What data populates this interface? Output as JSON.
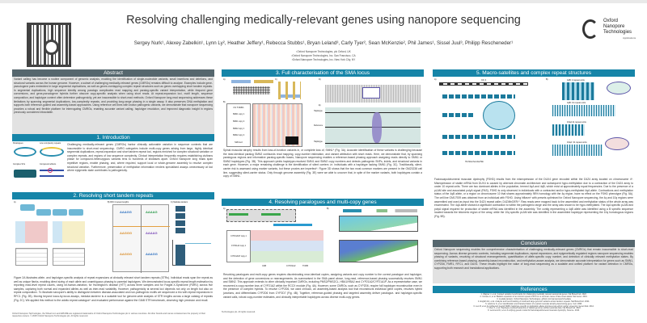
{
  "header": {
    "title": "Resolving challenging medically-relevant genes using nanopore sequencing",
    "authors": "Sergey Nurk¹, Alexey Zabelkin¹, Lynn Ly², Heather Jeffery¹, Rebecca Stubbs¹, Bryan Leland³, Carly Tyer², Sean McKenzie², Phil James¹, Sissel Juul³, Philipp Rescheneder¹",
    "affiliations": [
      "¹Oxford Nanopore Technologies, plc Oxford, UK",
      "²Oxford Nanopore Technologies, Inc. San Francisco, CA",
      "³Oxford Nanopore Technologies, Inc. New York City, NY"
    ],
    "logo_text": "Oxford Nanopore Technologies",
    "logo_sub": "Applications"
  },
  "abstract": {
    "heading": "Abstract",
    "text": "Variant calling has become a routine component of genomic analysis, enabling the identification of single-nucleotide variants, small insertions and deletions, and structural variants across the human genome. However, a subset of challenging medically-relevant genes (CMRGs) remains difficult to analyse. Examples include gene-pseudogene pairs embedded in large segmental duplications, as well as genes overlapping complex repeat structures such as genes overlapping short tandem repeats. In segmental duplications, high sequence identity among paralogs complicates read mapping and paralog-specific variant interpretation, while frequent gene conversions, and gene-pseudogene hybrids further obscure copy-specific analysis when using short reads. At repeat-expansion loci, motif length, sequence composition, and haplotype context often determine pathogenicity, yet are inaccessible to short-read methods. Oxford Nanopore long-read sequencing addresses these limitations by spanning segmental duplications, low-complexity repeats, and providing long-range phasing in a single assay. It also preserves DNA methylation and supports both reference-guided and assembly-based approaches. Using reference cell lines with known pathogenic variants, we demonstrate that nanopore sequencing provides a robust and flexible platform for interrogating CMRGs, enabling accurate variant calling, haplotype resolution, and improved diagnostic insight in regions previously considered intractable."
  },
  "intro": {
    "heading": "1. Introduction",
    "fig_labels": [
      "Paralogues",
      "Low complexity repeats",
      "Complex SVs",
      "Compound effects"
    ],
    "text": "Challenging medically-relevant genes (CMRGs) harbor clinically actionable variation in sequence contexts that are inaccessible to short-read sequencing¹. CMRG categories include multi-copy genes arising from large, highly identical segmental duplications, repeat-expansion and short tandem repeat loci, regions enriched for complex structural variation or complex repeats, and regions of low sequence complexity. Clinical interpretation frequently requires establishing cis/trans phase for compound-heterozygous variants tens to hundreds of kilobases apart. Oxford Nanopore long reads span repetitive regions, enable phasing, and, where required, support local or whole-genome assembly to resolve complex structural variation. Furthermore, preservation of methylation information renders specialised assays unnecessary at loci where epigenetic state contributes to pathogenicity."
  },
  "str": {
    "heading": "2. Resolving short tandem repeats",
    "panel_labels": [
      "A)",
      "B) RFC1 repeat lengths",
      "C) Medaka tandem"
    ],
    "motifs": [
      "AAAGG",
      "AAAAG",
      "AAGGG",
      "AAAAG",
      "AAGGG",
      "AAAGG"
    ],
    "text": "Figure 2A illustrates allele- and haplotype-specific analysis of repeat expansions at clinically relevant short tandem repeats (STRs). Individual reads span the repeat as well as unique flanks, enabling direct sizing of each allele and unambiguous phasing to parental haplotypes. We demonstrated locus-specific repeat length estimation by reporting read-level repeat counts, using wf-human-variation, for Huntington's disease (HTT) across three samples and for Fragile-X-Syndrome (FMR1) across five samples, capturing both normal and expanded alleles as well as inter-read variability. However, pathogenicity at several loci depends not only on length but also on repeat composition². To illustrate nanopore's ability to distinguish between disease-associated and non-pathogenic motifs we sequenced a trio with repeat expansions in RFC1 (Fig. 2B). Moving beyond locus-by-locus assays, medaka tandem³ is a scalable tool for genome-wide analysis of STR lengths across a large catalog of repeats (Fig. 2C). We applied this method to the adotto repeat catalogue⁴ and evaluated performance against the GIAB STR benchmark, observing high precision and recall.",
    "footer": "Oxford Nanopore Technologies, the Wheel icon and EPI2ME are registered trademarks of Oxford Nanopore Technologies plc in various countries. All other brands and names contained are the property of their respective owners. © 2025 Oxford Nanopore Technologies plc. All rights reserved."
  },
  "sma": {
    "heading": "3. Full characterisation of the SMA locus",
    "panel_labels": [
      "A)",
      "B)",
      "C)",
      "D)",
      "E)"
    ],
    "row_labels": [
      "Chr 5 SMN1",
      "SMN1 copy 1",
      "SMN1 copy 2",
      "SMN2 copy 1",
      "SMN2 copy 2",
      "SMA 2+0"
    ],
    "track_labels": [
      "Haplotype",
      "Reference",
      "Haplotype"
    ],
    "text": "Spinal muscular atrophy results from loss-of-function variants in, or complete loss of, SMN1⁵ (Fig. 3A). Accurate identification of these variants is challenging because the near-identical paralog SMN2 confounds read mapping, copy-number estimation, and variant attribution with short reads. Here, we demonstrate that, by spanning paralogous regions and informative paralog-specific bases, Nanopore sequencing enables a reference-based phasing approach assigning reads directly to SMN1 or SMN2 haplotypes (Fig. 3B). This approach yields haplotype-resolved SMN1 and SMN2 copy numbers and detects pathogenic SNPs, indels, and structural variants in each gene. However, a major remaining challenge is the identification of silent carriers i.e. individuals with a haplotype lacking SMN1 (Fig. 3C). Traditionally, silent-carrier risk is assessed using marker variants, but these proxies are imperfect⁶. Figure 3D shows that the two most common markers are present in the GM23238 cell line, suggesting silent-carrier status. Only through genome assembly (Fig. 3E) were we able to uncover that, in spite of the marker variants, both haplotypes contain a copy of SMN1."
  },
  "paralog": {
    "heading": "4. Resolving paralogues and multi-copy genes",
    "panel_labels": [
      "A)",
      "B)"
    ],
    "row_labels": [
      "CYP21A1P copy 1",
      "CYP21A2 copy 1",
      "CYP21A1P copy 2"
    ],
    "gene_labels": [
      "C4B",
      "CYP21A2",
      "TNXB"
    ],
    "text": "Resolving paralogues and multi-copy genes requires discriminating near-identical copies, assigning variants and copy number to the correct paralogue and haplotype, and the detection of gene conversions or rearrangements. As summarised in the SMA panel above, long-read, reference-based phasing successfully resolves SMN1 and SMN2. This approach extends to other clinically important CMRGs, including PMS2/PMS2CL, HBA1/HBA2 and CYP21A2/CYP21A1P. As a representative case, we recovered a copy-number loss of CYP21A2 within the RCCX module (Fig. 4A). However, some CMRGs, such as CYP2D6, require full haplotype reconstruction even in the presence of complex hybrids. To resolve CYP2D6, we used chinook, an assembly-based analysis tool that reconstructs individual gene copies, resolves hybrid junctions, and differentiates CYP2D6 from CYP2D7 (Fig. 4B). Together, reference-guided phasing and targeted assembly deliver paralogue- and haplotype-specific variant calls, robust copy-number estimates, and clinically interpretable haplotypes across diverse multi-copy genes.",
    "footer": "Technologies plc. All rights reserved."
  },
  "macro": {
    "heading": "5. Macro-satellites and complex repeat structures",
    "panel_labels": [
      "A)",
      "B)"
    ],
    "fig_titles": [
      "Chr 4",
      "4qB: 4 repeat units",
      "4qB: 31 repeat units",
      "10qA:11 repeat units",
      "10qA: 31 repeat units",
      "HG Mitochondrial 5kb"
    ],
    "text": "Facioscapulohumeral muscular dystrophy (FSHD) results from the misexpression of the DUX4 gene encoded within the D4Z4 array located on chromosome 4⁸. Misexpression of stable mRNA from DUX4 is caused by aberrant chromatin architecture and subsequent hypo-methylation due to a contraction of the D4Z4 array to under 10 repeat units. There are two dominant alleles in the population, termed 4qA and 4qB, which exist at approximately equal frequencies. Due to the presence of a pLAM site and associated polyA signal (PAS), FSHD is only observed in individuals with a contracted and/or hypo-methylated 4qA allele. Contractions and methylation status of the 4qB allele, or a region on chromosome 10 that shares approximately 98% homology with the 4q region, have no effect on the FSHD phenotype (Fig. 5A). The cell line GM17939 was obtained from an individual with FSHD. Using hifiasm⁹ with presets optimised for Oxford Nanopore sequencing, the 4q and 10q regions were assembled and used as input into the D4Z4 repeat caller, D4Z4finDER¹⁰. Raw reads were mapped back to the assembled and methylation status of the whole array was enumerated. The 4qA allele showed a significant contraction to within the pathogenic range and the array was shown to be hypo-methylated. The 4qA specific pLAM and polyA signal required for production of stable mRNA was identified in the assembly. The contig representing a 4qB allele was identified using a B specific sequence located towards the telomeric region of the array, while the 10q specific pLAM site was identified in the assembled haplotype representing the 10q homologous regions (Fig. 5B)."
  },
  "conclusion": {
    "heading": "Conclusion",
    "text": "Oxford Nanopore sequencing enables the comprehensive characterisation of challenging medically-relevant genes (CMRGs) that remain inaccessible to short-read sequencing. Across diverse genomic contexts, including segmental duplications, repeat expansions, and epigenetically regulated regions nanopore sequencing enables phasing of variants, resolving of structural rearrangements, quantification of allele-specific copy number, and detection of clinically relevant methylation states. By combining reference-based phasing, assembly-based reconstruction, and methylation-aware analysis, we demonstrate accurate interpretation for genes such as SMN1, CYP2D6, FMR1, RFC1, and DUX4. These results highlight the value of long-read sequencing as a scalable and unified platform for variant detection in CMRGs, supporting both research and translational applications."
  },
  "references": {
    "heading": "References",
    "items": [
      "1. Wagner J, et al. Curated variation benchmarks for challenging medically relevant autosomal genes. Nat Biotechnol. 2022.",
      "2. Cortese A, et al. Biallelic expansion of an intronic repeat in RFC1 is a common cause of late-onset ataxia. Nat Genet. 2019.",
      "3. medaka tandem. Oxford Nanopore Technologies. github.com/nanoporetech/medaka",
      "4. English AC, et al. Analysis and benchmarking of small and large genomic variants across tandem repeats. Nat Biotechnol. 2024.",
      "5. Lefebvre S, et al. Identification and characterization of a spinal muscular atrophy-determining gene. Cell. 1995.",
      "6. Luo M, et al. An Ashkenazi Jewish SMN1 haplotype specific to duplication alleles improves pan-ethnic carrier screening. Genet Med. 2014.",
      "7. Chen X, et al. Haplotype-resolved assembly of diploid genomes without parental data. Nat Biotechnol. 2022.",
      "8. Lemmers RJ, et al. A unifying genetic model for facioscapulohumeral muscular dystrophy. Science. 2010."
    ]
  },
  "colors": {
    "section_header": "#1685a8",
    "abstract_header": "#56676e",
    "abstract_bg": "#e2e2e2"
  }
}
